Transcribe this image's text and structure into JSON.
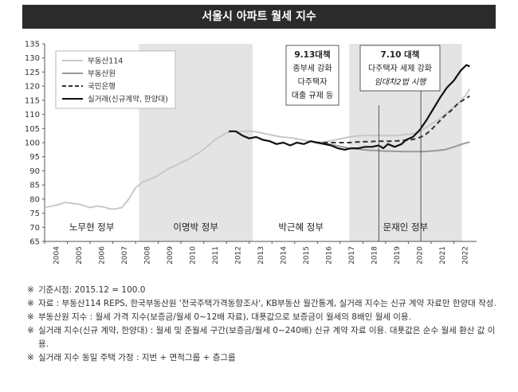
{
  "title": "서울시 아파트 월세 지수",
  "notes": [
    "기준시점: 2015.12 = 100.0",
    "자료 : 부동산114 REPS, 한국부동산원 '전국주택가격동향조사', KB부동산 월간통계, 실거래 지수는 신규 계약 자료만 한양대 작성.",
    "부동산원 지수 : 월세 가격 지수(보증금/월세 0~12배 자료), 대푯값으로 보증금이 월세의 8배인 월세 이용.",
    "실거래 지수(신규 계약, 한양대) : 월세 및 준월세 구간(보증금/월세 0~240배) 신규 계약 자료 이용. 대푯값은 순수 월세 환산 값 이용.",
    "실거래 지수 동일 주택 가정 : 지번 + 면적그룹 + 층그룹"
  ],
  "note_mark": "※",
  "chart_data": {
    "type": "line",
    "title": "서울시 아파트 월세 지수",
    "xlabel": "",
    "ylabel": "",
    "ylim": [
      65,
      135
    ],
    "xlim": [
      2004,
      2023
    ],
    "yticks": [
      65,
      70,
      75,
      80,
      85,
      90,
      95,
      100,
      105,
      110,
      115,
      120,
      125,
      130,
      135
    ],
    "xticks": [
      "2004",
      "2005",
      "2006",
      "2007",
      "2008",
      "2009",
      "2010",
      "2011",
      "2012",
      "2013",
      "2014",
      "2015",
      "2016",
      "2017",
      "2018",
      "2019",
      "2020",
      "2021",
      "2022"
    ],
    "grid": false,
    "legend_position": "top-left",
    "periods": [
      {
        "label": "노무현 정부",
        "start": 2004,
        "end": 2008.15,
        "shade": false
      },
      {
        "label": "이명박 정부",
        "start": 2008.15,
        "end": 2013.15,
        "shade": true
      },
      {
        "label": "박근혜 정부",
        "start": 2013.15,
        "end": 2017.4,
        "shade": false
      },
      {
        "label": "문재인 정부",
        "start": 2017.4,
        "end": 2022.35,
        "shade": true
      }
    ],
    "annotations": [
      {
        "lines": [
          "9.13대책",
          "종부세 강화",
          "다주택자",
          "대출 규제 등"
        ],
        "x": 2018.7
      },
      {
        "lines": [
          "7.10 대책",
          "다주택자 세제 강화",
          "임대차2법 시행"
        ],
        "x": 2020.55
      }
    ],
    "series": [
      {
        "name": "부동산114",
        "color": "#c8c8c8",
        "style": "solid",
        "points": [
          [
            2004.0,
            77
          ],
          [
            2004.3,
            77.5
          ],
          [
            2004.6,
            78
          ],
          [
            2004.9,
            78.8
          ],
          [
            2005.2,
            78.5
          ],
          [
            2005.5,
            78.2
          ],
          [
            2005.8,
            77.5
          ],
          [
            2006.0,
            77
          ],
          [
            2006.3,
            77.5
          ],
          [
            2006.6,
            77.2
          ],
          [
            2006.9,
            76.5
          ],
          [
            2007.1,
            76.5
          ],
          [
            2007.4,
            77
          ],
          [
            2007.7,
            80
          ],
          [
            2008.0,
            84
          ],
          [
            2008.3,
            86
          ],
          [
            2008.6,
            87
          ],
          [
            2008.9,
            88
          ],
          [
            2009.2,
            89.5
          ],
          [
            2009.5,
            91
          ],
          [
            2009.8,
            92
          ],
          [
            2010.0,
            93
          ],
          [
            2010.3,
            94
          ],
          [
            2010.6,
            95.5
          ],
          [
            2010.9,
            97
          ],
          [
            2011.2,
            99
          ],
          [
            2011.5,
            101
          ],
          [
            2011.8,
            102.5
          ],
          [
            2012.0,
            103.5
          ],
          [
            2012.3,
            104
          ],
          [
            2012.6,
            104
          ],
          [
            2012.9,
            104
          ],
          [
            2013.2,
            104
          ],
          [
            2013.5,
            103.5
          ],
          [
            2013.8,
            103
          ],
          [
            2014.1,
            102.5
          ],
          [
            2014.4,
            102
          ],
          [
            2014.7,
            101.8
          ],
          [
            2015.0,
            101.5
          ],
          [
            2015.3,
            101
          ],
          [
            2015.6,
            100.5
          ],
          [
            2015.9,
            100
          ],
          [
            2016.2,
            100.2
          ],
          [
            2016.5,
            100.5
          ],
          [
            2016.8,
            101
          ],
          [
            2017.1,
            101.5
          ],
          [
            2017.4,
            102
          ],
          [
            2017.7,
            102.3
          ],
          [
            2018.0,
            102.5
          ],
          [
            2018.3,
            102.5
          ],
          [
            2018.6,
            102.5
          ],
          [
            2018.9,
            102.5
          ],
          [
            2019.2,
            102.5
          ],
          [
            2019.5,
            102.5
          ],
          [
            2019.8,
            102.8
          ],
          [
            2020.1,
            103
          ],
          [
            2020.4,
            103.5
          ],
          [
            2020.7,
            105
          ],
          [
            2021.0,
            106.5
          ],
          [
            2021.3,
            108
          ],
          [
            2021.6,
            110
          ],
          [
            2021.9,
            112
          ],
          [
            2022.2,
            114
          ],
          [
            2022.5,
            116.5
          ],
          [
            2022.7,
            119
          ]
        ]
      },
      {
        "name": "부동산원",
        "color": "#999999",
        "style": "solid",
        "points": [
          [
            2015.9,
            100
          ],
          [
            2016.2,
            99.8
          ],
          [
            2016.5,
            99.5
          ],
          [
            2016.8,
            99
          ],
          [
            2017.1,
            98.5
          ],
          [
            2017.4,
            98
          ],
          [
            2017.7,
            97.8
          ],
          [
            2018.0,
            97.5
          ],
          [
            2018.3,
            97.3
          ],
          [
            2018.6,
            97.2
          ],
          [
            2018.9,
            97
          ],
          [
            2019.2,
            97
          ],
          [
            2019.5,
            96.9
          ],
          [
            2019.8,
            96.8
          ],
          [
            2020.1,
            96.8
          ],
          [
            2020.4,
            96.8
          ],
          [
            2020.7,
            96.8
          ],
          [
            2021.0,
            97
          ],
          [
            2021.3,
            97.2
          ],
          [
            2021.6,
            97.5
          ],
          [
            2021.9,
            98.2
          ],
          [
            2022.2,
            99
          ],
          [
            2022.5,
            99.8
          ],
          [
            2022.7,
            100.2
          ]
        ]
      },
      {
        "name": "국민은행",
        "color": "#333333",
        "style": "dashed",
        "points": [
          [
            2015.9,
            100
          ],
          [
            2016.2,
            100
          ],
          [
            2016.5,
            100
          ],
          [
            2016.8,
            100
          ],
          [
            2017.1,
            100
          ],
          [
            2017.4,
            100
          ],
          [
            2017.7,
            100.2
          ],
          [
            2018.0,
            100.3
          ],
          [
            2018.3,
            100.3
          ],
          [
            2018.6,
            100.5
          ],
          [
            2018.9,
            100.5
          ],
          [
            2019.2,
            100.5
          ],
          [
            2019.5,
            100.6
          ],
          [
            2019.8,
            100.8
          ],
          [
            2020.1,
            101
          ],
          [
            2020.4,
            101.5
          ],
          [
            2020.7,
            102.5
          ],
          [
            2021.0,
            104.5
          ],
          [
            2021.3,
            107
          ],
          [
            2021.6,
            109.5
          ],
          [
            2021.9,
            111.5
          ],
          [
            2022.2,
            114
          ],
          [
            2022.5,
            115.5
          ],
          [
            2022.7,
            116.5
          ]
        ]
      },
      {
        "name": "실거래(신규계약, 한양대)",
        "color": "#111111",
        "style": "solid",
        "points": [
          [
            2012.1,
            104
          ],
          [
            2012.4,
            104
          ],
          [
            2012.7,
            102.5
          ],
          [
            2013.0,
            101.5
          ],
          [
            2013.3,
            102
          ],
          [
            2013.6,
            101
          ],
          [
            2013.9,
            100.5
          ],
          [
            2014.2,
            99.5
          ],
          [
            2014.5,
            100
          ],
          [
            2014.8,
            99
          ],
          [
            2015.1,
            100
          ],
          [
            2015.4,
            99.5
          ],
          [
            2015.7,
            100.5
          ],
          [
            2016.0,
            100
          ],
          [
            2016.3,
            99.5
          ],
          [
            2016.6,
            99
          ],
          [
            2016.9,
            98
          ],
          [
            2017.2,
            97.5
          ],
          [
            2017.5,
            98
          ],
          [
            2017.8,
            98
          ],
          [
            2018.1,
            98.5
          ],
          [
            2018.4,
            98.5
          ],
          [
            2018.7,
            99
          ],
          [
            2018.9,
            98
          ],
          [
            2019.1,
            99.5
          ],
          [
            2019.4,
            98.5
          ],
          [
            2019.7,
            99.5
          ],
          [
            2019.9,
            101
          ],
          [
            2020.2,
            102
          ],
          [
            2020.5,
            104.5
          ],
          [
            2020.8,
            108
          ],
          [
            2021.1,
            112
          ],
          [
            2021.4,
            116
          ],
          [
            2021.7,
            119.5
          ],
          [
            2022.0,
            122
          ],
          [
            2022.3,
            125.5
          ],
          [
            2022.55,
            127.5
          ],
          [
            2022.7,
            127
          ]
        ]
      }
    ]
  }
}
